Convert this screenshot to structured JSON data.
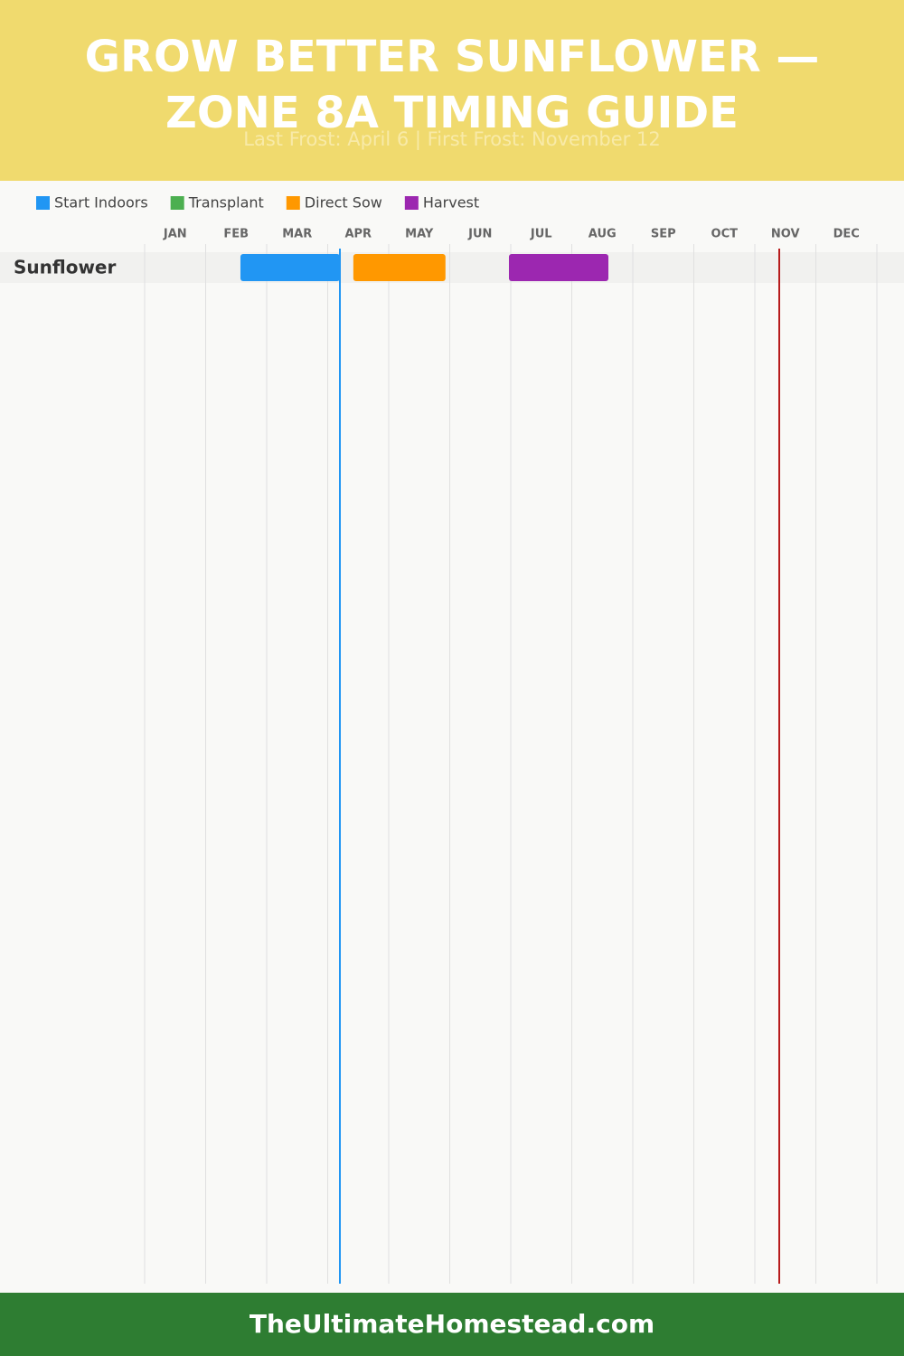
{
  "chart_data": {
    "type": "gantt",
    "title": "GROW BETTER SUNFLOWER — ZONE 8A TIMING GUIDE",
    "subtitle": "Last Frost: April 6 | First Frost: November 12",
    "footer": "TheUltimateHomestead.com",
    "rows": [
      "Sunflower"
    ],
    "categories": [
      "JAN",
      "FEB",
      "MAR",
      "APR",
      "MAY",
      "JUN",
      "JUL",
      "AUG",
      "SEP",
      "OCT",
      "NOV",
      "DEC"
    ],
    "xlim": [
      0,
      12
    ],
    "xticks": [
      0,
      1,
      2,
      3,
      4,
      5,
      6,
      7,
      8,
      9,
      10,
      11,
      12
    ],
    "grid": true,
    "series": [
      {
        "name": "Start Indoors",
        "color": "#2196f3",
        "spans": [
          {
            "start": 1.57,
            "end": 3.2
          }
        ]
      },
      {
        "name": "Transplant",
        "color": "#4caf50",
        "spans": []
      },
      {
        "name": "Direct Sow",
        "color": "#ff9800",
        "spans": [
          {
            "start": 3.42,
            "end": 4.93
          }
        ]
      },
      {
        "name": "Harvest",
        "color": "#9c27b0",
        "spans": [
          {
            "start": 5.97,
            "end": 7.6
          }
        ]
      }
    ],
    "markers": [
      {
        "value": 3.2,
        "color": "#2196f3"
      },
      {
        "value": 10.4,
        "color": "#b71c1c"
      }
    ]
  }
}
